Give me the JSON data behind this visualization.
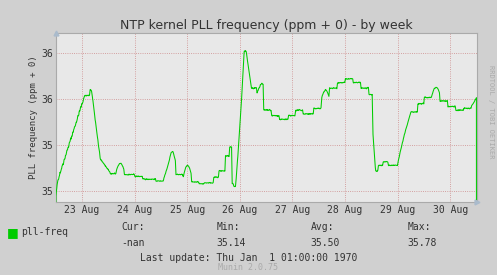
{
  "title": "NTP kernel PLL frequency (ppm + 0) - by week",
  "ylabel": "PLL frequency (ppm + 0)",
  "background_color": "#d0d0d0",
  "plot_bg_color": "#e8e8e8",
  "grid_color": "#cc8888",
  "line_color": "#00cc00",
  "text_color": "#333333",
  "title_color": "#333333",
  "axis_color": "#999999",
  "ylim_min": 34.88,
  "ylim_max": 36.72,
  "ytick_positions": [
    35.0,
    35.5,
    36.0,
    36.5
  ],
  "ytick_labels": [
    "35",
    "35",
    "36",
    "36"
  ],
  "x_tick_labels": [
    "23 Aug",
    "24 Aug",
    "25 Aug",
    "26 Aug",
    "27 Aug",
    "28 Aug",
    "29 Aug",
    "30 Aug"
  ],
  "legend_label": "pll-freq",
  "legend_color": "#00cc00",
  "stats_cur": "-nan",
  "stats_min": "35.14",
  "stats_avg": "35.50",
  "stats_max": "35.78",
  "last_update": "Last update: Thu Jan  1 01:00:00 1970",
  "munin_version": "Munin 2.0.75",
  "rrdtool_label": "RRDTOOL / TOBI OETIKER",
  "watermark_color": "#aaaaaa",
  "spine_color": "#aaaaaa"
}
